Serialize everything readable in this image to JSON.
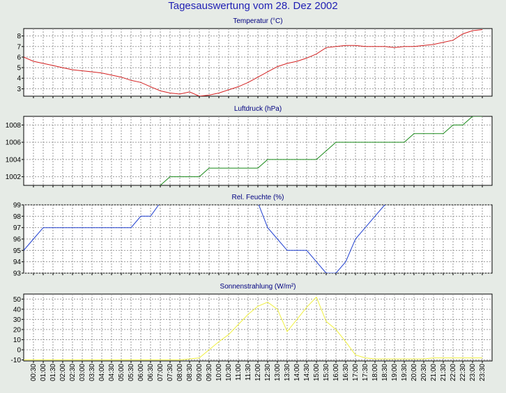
{
  "title": "Tagesauswertung vom 28. Dez 2002",
  "colors": {
    "background": "#e6ebe6",
    "plot_background": "#ffffff",
    "title": "#1f1fb4",
    "temperature": "#d42020",
    "pressure": "#1a8a1a",
    "humidity": "#1f3fcf",
    "solar": "#f0f040"
  },
  "chart_data": [
    {
      "type": "line",
      "title": "Temperatur (°C)",
      "x": [
        "00:00",
        "00:30",
        "01:00",
        "01:30",
        "02:00",
        "02:30",
        "03:00",
        "03:30",
        "04:00",
        "04:30",
        "05:00",
        "05:30",
        "06:00",
        "06:30",
        "07:00",
        "07:30",
        "08:00",
        "08:30",
        "09:00",
        "09:30",
        "10:00",
        "10:30",
        "11:00",
        "11:30",
        "12:00",
        "12:30",
        "13:00",
        "13:30",
        "14:00",
        "14:30",
        "15:00",
        "15:30",
        "16:00",
        "16:30",
        "17:00",
        "17:30",
        "18:00",
        "18:30",
        "19:00",
        "19:30",
        "20:00",
        "20:30",
        "21:00",
        "21:30",
        "22:00",
        "22:30",
        "23:00",
        "23:30"
      ],
      "series": [
        {
          "values": [
            6.0,
            5.6,
            5.4,
            5.2,
            5.0,
            4.8,
            4.7,
            4.6,
            4.5,
            4.3,
            4.1,
            3.8,
            3.6,
            3.2,
            2.8,
            2.6,
            2.5,
            2.7,
            2.3,
            2.4,
            2.6,
            2.9,
            3.2,
            3.6,
            4.1,
            4.6,
            5.1,
            5.4,
            5.6,
            5.9,
            6.3,
            6.9,
            7.0,
            7.1,
            7.1,
            7.0,
            7.0,
            7.0,
            6.9,
            7.0,
            7.0,
            7.1,
            7.2,
            7.4,
            7.6,
            8.2,
            8.5,
            8.6
          ]
        }
      ],
      "ylim": [
        2.3,
        8.7
      ],
      "yticks": [
        3,
        4,
        5,
        6,
        7,
        8
      ],
      "grid": true
    },
    {
      "type": "line",
      "title": "Luftdruck (hPa)",
      "x": [
        "00:00",
        "00:30",
        "01:00",
        "01:30",
        "02:00",
        "02:30",
        "03:00",
        "03:30",
        "04:00",
        "04:30",
        "05:00",
        "05:30",
        "06:00",
        "06:30",
        "07:00",
        "07:30",
        "08:00",
        "08:30",
        "09:00",
        "09:30",
        "10:00",
        "10:30",
        "11:00",
        "11:30",
        "12:00",
        "12:30",
        "13:00",
        "13:30",
        "14:00",
        "14:30",
        "15:00",
        "15:30",
        "16:00",
        "16:30",
        "17:00",
        "17:30",
        "18:00",
        "18:30",
        "19:00",
        "19:30",
        "20:00",
        "20:30",
        "21:00",
        "21:30",
        "22:00",
        "22:30",
        "23:00",
        "23:30"
      ],
      "series": [
        {
          "values": [
            null,
            null,
            null,
            null,
            null,
            null,
            null,
            null,
            null,
            null,
            null,
            null,
            null,
            null,
            1001,
            1002,
            1002,
            1002,
            1002,
            1003,
            1003,
            1003,
            1003,
            1003,
            1003,
            1004,
            1004,
            1004,
            1004,
            1004,
            1004,
            1005,
            1006,
            1006,
            1006,
            1006,
            1006,
            1006,
            1006,
            1006,
            1007,
            1007,
            1007,
            1007,
            1008,
            1008,
            1009,
            1009
          ]
        }
      ],
      "ylim": [
        1001,
        1009
      ],
      "yticks": [
        1002,
        1004,
        1006,
        1008
      ],
      "grid": true
    },
    {
      "type": "line",
      "title": "Rel. Feuchte (%)",
      "x": [
        "00:00",
        "00:30",
        "01:00",
        "01:30",
        "02:00",
        "02:30",
        "03:00",
        "03:30",
        "04:00",
        "04:30",
        "05:00",
        "05:30",
        "06:00",
        "06:30",
        "07:00",
        "07:30",
        "08:00",
        "08:30",
        "09:00",
        "09:30",
        "10:00",
        "10:30",
        "11:00",
        "11:30",
        "12:00",
        "12:30",
        "13:00",
        "13:30",
        "14:00",
        "14:30",
        "15:00",
        "15:30",
        "16:00",
        "16:30",
        "17:00",
        "17:30",
        "18:00",
        "18:30",
        "19:00",
        "19:30",
        "20:00",
        "20:30",
        "21:00",
        "21:30",
        "22:00",
        "22:30",
        "23:00",
        "23:30"
      ],
      "series": [
        {
          "values": [
            95,
            96,
            97,
            97,
            97,
            97,
            97,
            97,
            97,
            97,
            97,
            97,
            98,
            98,
            99.2,
            99.2,
            99.2,
            99.2,
            99.2,
            99.2,
            99.2,
            99.2,
            99.2,
            99.2,
            99.2,
            97,
            96,
            95,
            95,
            95,
            94,
            93,
            93,
            94,
            96,
            97,
            98,
            99,
            99.2,
            99.2,
            99.2,
            99.2,
            99.2,
            99.2,
            99.2,
            99.2,
            99.2,
            99.2
          ]
        }
      ],
      "ylim": [
        93,
        99
      ],
      "yticks": [
        93,
        94,
        95,
        96,
        97,
        98,
        99
      ],
      "grid": true
    },
    {
      "type": "line",
      "title": "Sonnenstrahlung (W/m²)",
      "x": [
        "00:00",
        "00:30",
        "01:00",
        "01:30",
        "02:00",
        "02:30",
        "03:00",
        "03:30",
        "04:00",
        "04:30",
        "05:00",
        "05:30",
        "06:00",
        "06:30",
        "07:00",
        "07:30",
        "08:00",
        "08:30",
        "09:00",
        "09:30",
        "10:00",
        "10:30",
        "11:00",
        "11:30",
        "12:00",
        "12:30",
        "13:00",
        "13:30",
        "14:00",
        "14:30",
        "15:00",
        "15:30",
        "16:00",
        "16:30",
        "17:00",
        "17:30",
        "18:00",
        "18:30",
        "19:00",
        "19:30",
        "20:00",
        "20:30",
        "21:00",
        "21:30",
        "22:00",
        "22:30",
        "23:00",
        "23:30"
      ],
      "series": [
        {
          "values": [
            -10,
            -10,
            -10,
            -10,
            -10,
            -10,
            -10,
            -10,
            -10,
            -10,
            -10,
            -10,
            -10,
            -10,
            -10,
            -10,
            -10,
            -9,
            -8,
            0,
            8,
            15,
            25,
            35,
            43,
            47,
            40,
            18,
            30,
            42,
            52,
            28,
            20,
            8,
            -5,
            -8,
            -9,
            -9,
            -9,
            -9,
            -9,
            -9,
            -8,
            -8,
            -8,
            -8,
            -8,
            -8
          ]
        }
      ],
      "ylim": [
        -11,
        55
      ],
      "yticks": [
        -10,
        0,
        10,
        20,
        30,
        40,
        50
      ],
      "grid": true
    }
  ],
  "x_tick_labels": [
    "00:30",
    "01:00",
    "01:30",
    "02:00",
    "02:30",
    "03:00",
    "03:30",
    "04:00",
    "04:30",
    "05:00",
    "05:30",
    "06:00",
    "06:30",
    "07:00",
    "07:30",
    "08:00",
    "08:30",
    "09:00",
    "09:30",
    "10:00",
    "10:30",
    "11:00",
    "11:30",
    "12:00",
    "12:30",
    "13:00",
    "13:30",
    "14:00",
    "14:30",
    "15:00",
    "15:30",
    "16:00",
    "16:30",
    "17:00",
    "17:30",
    "18:00",
    "18:30",
    "19:00",
    "19:30",
    "20:00",
    "20:30",
    "21:00",
    "21:30",
    "22:00",
    "22:30",
    "23:00",
    "23:30"
  ]
}
